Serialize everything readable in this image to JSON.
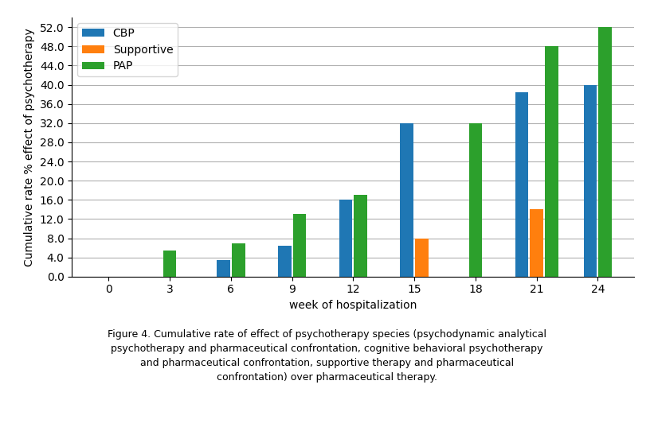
{
  "chart_data": {
    "type": "bar",
    "x": [
      0,
      3,
      6,
      9,
      12,
      15,
      18,
      21,
      24
    ],
    "series": [
      {
        "name": "CBP",
        "values": [
          null,
          null,
          3.5,
          6.5,
          16.0,
          32.0,
          null,
          38.5,
          40.0
        ]
      },
      {
        "name": "Supportive",
        "values": [
          null,
          null,
          null,
          null,
          null,
          8.0,
          null,
          14.0,
          null
        ]
      },
      {
        "name": "PAP",
        "values": [
          null,
          5.5,
          7.0,
          13.0,
          17.0,
          null,
          32.0,
          48.0,
          52.0
        ]
      }
    ],
    "x_label": "week of hospitalization",
    "y_label": "Cumulative rate % effect of psychotherapy",
    "xlim": [
      -1.8,
      25.8
    ],
    "xticks": [
      0,
      3,
      6,
      9,
      12,
      15,
      18,
      21,
      24
    ],
    "ylim": [
      0,
      54
    ],
    "yticks": [
      {
        "value": 0,
        "label": "0.0"
      },
      {
        "value": 4,
        "label": "4.0"
      },
      {
        "value": 8,
        "label": "8.0"
      },
      {
        "value": 12,
        "label": "12.0"
      },
      {
        "value": 16,
        "label": "16.0"
      },
      {
        "value": 20,
        "label": "20.0"
      },
      {
        "value": 24,
        "label": "24.0"
      },
      {
        "value": 28,
        "label": "28.0"
      },
      {
        "value": 32,
        "label": "32.0"
      },
      {
        "value": 36,
        "label": "36.0"
      },
      {
        "value": 40,
        "label": "40.0"
      },
      {
        "value": 44,
        "label": "44.0"
      },
      {
        "value": 48,
        "label": "48.0"
      },
      {
        "value": 52,
        "label": "52.0"
      }
    ],
    "grid": true,
    "legend": "upper left",
    "caption": "Figure 4. Cumulative rate of effect of psychotherapy species (psychodynamic analytical\npsychotherapy and pharmaceutical confrontation, cognitive behavioral psychotherapy\nand pharmaceutical confrontation, supportive therapy and pharmaceutical\nconfrontation) over pharmaceutical therapy."
  }
}
